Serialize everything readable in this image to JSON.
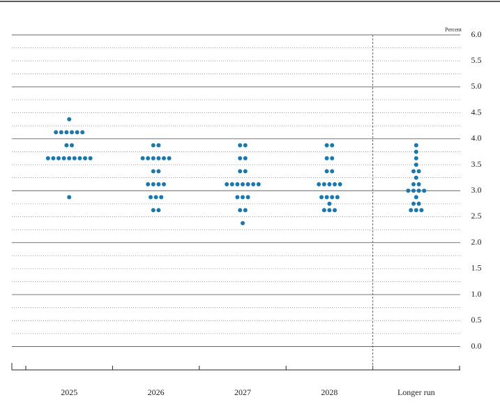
{
  "chart_data": {
    "type": "dot",
    "unit_label": "Percent",
    "categories": [
      "2025",
      "2026",
      "2027",
      "2028",
      "Longer run"
    ],
    "color": "#1a78ad",
    "values": [
      [
        4.375,
        4.125,
        4.125,
        4.125,
        4.125,
        4.125,
        4.125,
        3.875,
        3.875,
        3.625,
        3.625,
        3.625,
        3.625,
        3.625,
        3.625,
        3.625,
        3.625,
        3.625,
        2.875
      ],
      [
        3.875,
        3.875,
        3.625,
        3.625,
        3.625,
        3.625,
        3.625,
        3.625,
        3.375,
        3.375,
        3.125,
        3.125,
        3.125,
        3.125,
        2.875,
        2.875,
        2.875,
        2.625,
        2.625
      ],
      [
        3.875,
        3.875,
        3.625,
        3.625,
        3.375,
        3.375,
        3.125,
        3.125,
        3.125,
        3.125,
        3.125,
        3.125,
        3.125,
        2.875,
        2.875,
        2.875,
        2.625,
        2.625,
        2.375
      ],
      [
        3.875,
        3.875,
        3.625,
        3.625,
        3.375,
        3.375,
        3.125,
        3.125,
        3.125,
        3.125,
        3.125,
        2.875,
        2.875,
        2.875,
        2.875,
        2.75,
        2.625,
        2.625,
        2.625
      ],
      [
        3.875,
        3.75,
        3.625,
        3.5,
        3.375,
        3.375,
        3.25,
        3.125,
        3.125,
        3.0,
        3.0,
        3.0,
        3.0,
        2.875,
        2.75,
        2.75,
        2.625,
        2.625,
        2.625
      ]
    ],
    "ylim": [
      -0.45,
      6.0
    ],
    "yticks": [
      {
        "value": 0,
        "label": "0.0"
      },
      {
        "value": 0.5,
        "label": "0.5"
      },
      {
        "value": 1,
        "label": "1.0"
      },
      {
        "value": 1.5,
        "label": "1.5"
      },
      {
        "value": 2,
        "label": "2.0"
      },
      {
        "value": 2.5,
        "label": "2.5"
      },
      {
        "value": 3,
        "label": "3.0"
      },
      {
        "value": 3.5,
        "label": "3.5"
      },
      {
        "value": 4,
        "label": "4.0"
      },
      {
        "value": 4.5,
        "label": "4.5"
      },
      {
        "value": 5,
        "label": "5.0"
      },
      {
        "value": 5.5,
        "label": "5.5"
      },
      {
        "value": 6,
        "label": "6.0"
      }
    ],
    "grid": true
  }
}
